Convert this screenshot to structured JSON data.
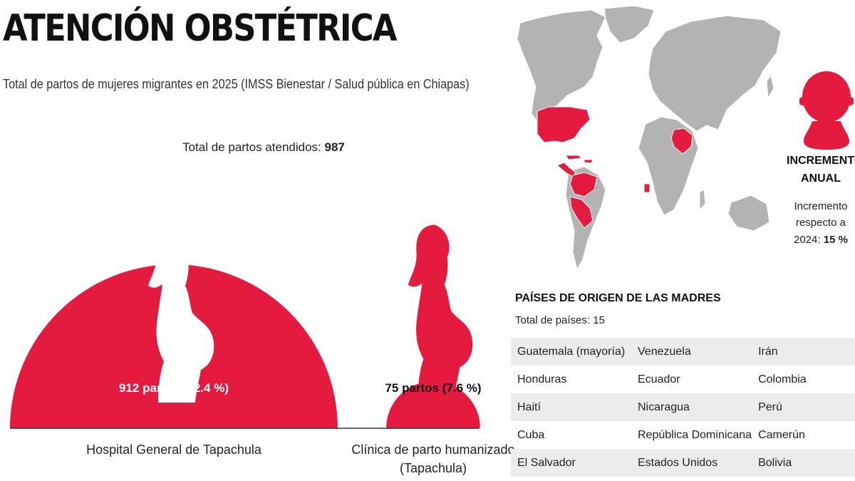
{
  "title": "ATENCIÓN OBSTÉTRICA",
  "subtitle": "Total de partos de mujeres migrantes en 2025 (IMSS Bienestar / Salud pública en Chiapas)",
  "total": {
    "label": "Total de partos atendidos:",
    "value": "987"
  },
  "colors": {
    "accent": "#e41a3f",
    "map_land": "#b3b3b3",
    "map_border": "#ffffff",
    "table_stripe": "#ececec"
  },
  "chart_data": {
    "type": "bar",
    "title": "Total de partos atendidos: 987",
    "categories": [
      "Hospital General de Tapachula",
      "Clínica de parto humanizado (Tapachula)"
    ],
    "values": [
      912,
      75
    ],
    "percentages": [
      92.4,
      7.6
    ],
    "data_labels": [
      "912 partos (92.4 %)",
      "75 partos (7.6 %)"
    ],
    "category_lines": [
      [
        "Hospital General de Tapachula"
      ],
      [
        "Clínica de parto humanizado",
        "(Tapachula)"
      ]
    ],
    "icon": "pregnant-woman-icon"
  },
  "increment": {
    "title_line1": "INCREMENTO",
    "title_line2": "ANUAL",
    "text_line1": "Incremento",
    "text_line2": "respecto a",
    "text_line3_prefix": "2024:",
    "value": "15 %",
    "icon": "baby-icon"
  },
  "map": {
    "icon": "world-map",
    "highlighted_regions": [
      "Estados Unidos",
      "México sur / Centroamérica",
      "Cuba",
      "Haití",
      "República Dominicana",
      "Venezuela",
      "Colombia",
      "Ecuador",
      "Perú",
      "Bolivia",
      "Irán",
      "Camerún"
    ]
  },
  "countries": {
    "title": "PAÍSES DE ORIGEN DE LAS MADRES",
    "total_label": "Total de países: 15",
    "rows": [
      [
        "Guatemala (mayoría)",
        "Venezuela",
        "Irán"
      ],
      [
        "Honduras",
        "Ecuador",
        "Colombia"
      ],
      [
        "Haití",
        "Nicaragua",
        "Perú"
      ],
      [
        "Cuba",
        "República Dominicana",
        "Camerún"
      ],
      [
        "El Salvador",
        "Estados Unidos",
        "Bolivia"
      ]
    ]
  }
}
